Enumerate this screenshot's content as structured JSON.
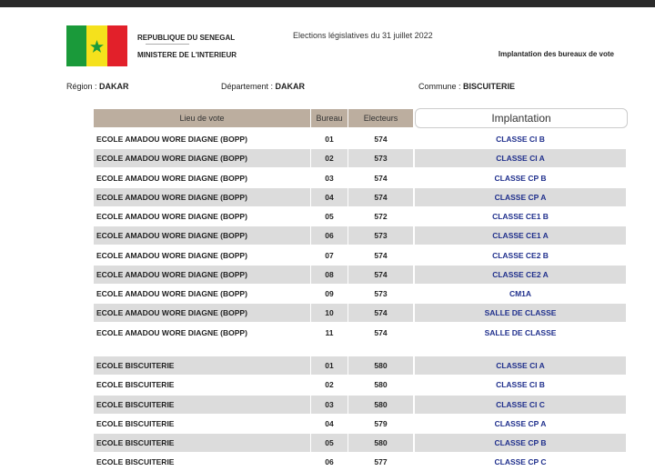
{
  "header": {
    "country": "REPUBLIQUE DU SENEGAL",
    "separator": "------------------------",
    "ministry": "MINISTERE DE L'INTERIEUR",
    "election": "Elections législatives du 31 juillet 2022",
    "subtitle": "Implantation des bureaux de vote"
  },
  "location": {
    "region_label": "Région :",
    "region": "DAKAR",
    "department_label": "Département :",
    "department": "DAKAR",
    "commune_label": "Commune :",
    "commune": "BISCUITERIE"
  },
  "table": {
    "columns": [
      "Lieu de vote",
      "Bureau",
      "Electeurs",
      "Implantation"
    ],
    "groups": [
      {
        "rows": [
          [
            "ECOLE AMADOU WORE DIAGNE (BOPP)",
            "01",
            "574",
            "CLASSE CI B"
          ],
          [
            "ECOLE AMADOU WORE DIAGNE (BOPP)",
            "02",
            "573",
            "CLASSE CI A"
          ],
          [
            "ECOLE AMADOU WORE DIAGNE (BOPP)",
            "03",
            "574",
            "CLASSE CP B"
          ],
          [
            "ECOLE AMADOU WORE DIAGNE (BOPP)",
            "04",
            "574",
            "CLASSE CP A"
          ],
          [
            "ECOLE AMADOU WORE DIAGNE (BOPP)",
            "05",
            "572",
            "CLASSE CE1 B"
          ],
          [
            "ECOLE AMADOU WORE DIAGNE (BOPP)",
            "06",
            "573",
            "CLASSE CE1 A"
          ],
          [
            "ECOLE AMADOU WORE DIAGNE (BOPP)",
            "07",
            "574",
            "CLASSE CE2 B"
          ],
          [
            "ECOLE AMADOU WORE DIAGNE (BOPP)",
            "08",
            "574",
            "CLASSE CE2 A"
          ],
          [
            "ECOLE AMADOU WORE DIAGNE (BOPP)",
            "09",
            "573",
            "CM1A"
          ],
          [
            "ECOLE AMADOU WORE DIAGNE (BOPP)",
            "10",
            "574",
            "SALLE DE CLASSE"
          ],
          [
            "ECOLE AMADOU WORE DIAGNE (BOPP)",
            "11",
            "574",
            "SALLE DE CLASSE"
          ]
        ]
      },
      {
        "rows": [
          [
            "ECOLE BISCUITERIE",
            "01",
            "580",
            "CLASSE CI A"
          ],
          [
            "ECOLE BISCUITERIE",
            "02",
            "580",
            "CLASSE CI B"
          ],
          [
            "ECOLE BISCUITERIE",
            "03",
            "580",
            "CLASSE CI C"
          ],
          [
            "ECOLE BISCUITERIE",
            "04",
            "579",
            "CLASSE CP A"
          ],
          [
            "ECOLE BISCUITERIE",
            "05",
            "580",
            "CLASSE CP B"
          ],
          [
            "ECOLE BISCUITERIE",
            "06",
            "577",
            "CLASSE CP C"
          ]
        ]
      }
    ]
  }
}
